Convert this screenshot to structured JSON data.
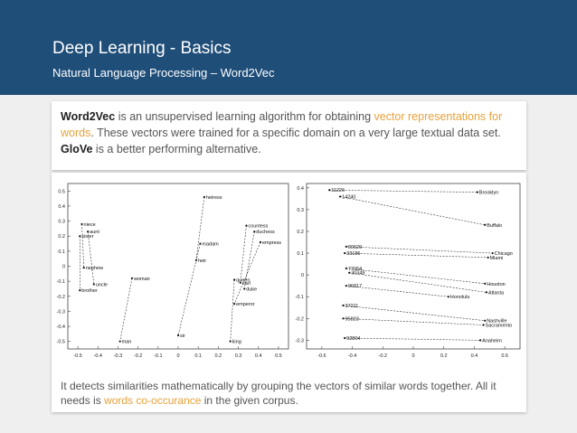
{
  "header": {
    "title": "Deep Learning - Basics",
    "subtitle": "Natural Language Processing – Word2Vec"
  },
  "intro": {
    "term": "Word2Vec",
    "text1": " is an unsupervised learning algorithm for obtaining ",
    "highlight": "vector representations for words",
    "text2": ". These vectors were trained for a specific domain on a very large textual data set. ",
    "term2": "GloVe",
    "text3": " is a better performing alternative."
  },
  "footer": {
    "text1": "It detects similarities mathematically by grouping the vectors of similar words together. All it needs is ",
    "highlight": "words co-occurance",
    "text2": " in the given corpus."
  },
  "colors": {
    "header_bg": "#1f4e79",
    "accent": "#e8a13a"
  },
  "chart_data": [
    {
      "type": "scatter",
      "xlim": [
        -0.55,
        0.55
      ],
      "ylim": [
        -0.55,
        0.55
      ],
      "xticks": [
        "-0.5",
        "-0.4",
        "-0.3",
        "-0.2",
        "-0.1",
        "0",
        "0.1",
        "0.2",
        "0.3",
        "0.4",
        "0.5"
      ],
      "yticks": [
        "0.5",
        "0.4",
        "0.3",
        "0.2",
        "0.1",
        "0",
        "-0.1",
        "-0.2",
        "-0.3",
        "-0.4",
        "-0.5"
      ],
      "points": [
        {
          "label": "niece",
          "x": -0.48,
          "y": 0.28
        },
        {
          "label": "aunt",
          "x": -0.45,
          "y": 0.23
        },
        {
          "label": "sister",
          "x": -0.49,
          "y": 0.2
        },
        {
          "label": "nephew",
          "x": -0.47,
          "y": -0.01
        },
        {
          "label": "uncle",
          "x": -0.42,
          "y": -0.12
        },
        {
          "label": "brother",
          "x": -0.49,
          "y": -0.16
        },
        {
          "label": "woman",
          "x": -0.23,
          "y": -0.08
        },
        {
          "label": "man",
          "x": -0.29,
          "y": -0.5
        },
        {
          "label": "heiress",
          "x": 0.13,
          "y": 0.46
        },
        {
          "label": "madam",
          "x": 0.11,
          "y": 0.15
        },
        {
          "label": "heir",
          "x": 0.09,
          "y": 0.04
        },
        {
          "label": "sir",
          "x": 0.0,
          "y": -0.46
        },
        {
          "label": "countess",
          "x": 0.34,
          "y": 0.27
        },
        {
          "label": "duchess",
          "x": 0.38,
          "y": 0.23
        },
        {
          "label": "empress",
          "x": 0.41,
          "y": 0.16
        },
        {
          "label": "queen",
          "x": 0.28,
          "y": -0.09
        },
        {
          "label": "earl",
          "x": 0.31,
          "y": -0.11
        },
        {
          "label": "duke",
          "x": 0.33,
          "y": -0.15
        },
        {
          "label": "emperor",
          "x": 0.28,
          "y": -0.25
        },
        {
          "label": "king",
          "x": 0.26,
          "y": -0.5
        }
      ],
      "pairs": [
        [
          "niece",
          "nephew"
        ],
        [
          "aunt",
          "uncle"
        ],
        [
          "sister",
          "brother"
        ],
        [
          "woman",
          "man"
        ],
        [
          "heiress",
          "heir"
        ],
        [
          "madam",
          "sir"
        ],
        [
          "countess",
          "earl"
        ],
        [
          "duchess",
          "duke"
        ],
        [
          "empress",
          "emperor"
        ],
        [
          "queen",
          "king"
        ]
      ]
    },
    {
      "type": "scatter",
      "xlim": [
        -0.7,
        0.7
      ],
      "ylim": [
        -0.34,
        0.42
      ],
      "xticks": [
        "-0.6",
        "-0.4",
        "-0.2",
        "0",
        "0.2",
        "0.4",
        "0.6"
      ],
      "yticks": [
        "0.4",
        "0.3",
        "0.2",
        "0.1",
        "0",
        "-0.1",
        "-0.2",
        "-0.3"
      ],
      "points": [
        {
          "label": "11226",
          "x": -0.55,
          "y": 0.39
        },
        {
          "label": "14240",
          "x": -0.48,
          "y": 0.36
        },
        {
          "label": "60629",
          "x": -0.44,
          "y": 0.13
        },
        {
          "label": "33186",
          "x": -0.45,
          "y": 0.1
        },
        {
          "label": "77064",
          "x": -0.44,
          "y": 0.03
        },
        {
          "label": "30349",
          "x": -0.42,
          "y": 0.01
        },
        {
          "label": "96817",
          "x": -0.44,
          "y": -0.05
        },
        {
          "label": "37211",
          "x": -0.46,
          "y": -0.14
        },
        {
          "label": "95823",
          "x": -0.46,
          "y": -0.2
        },
        {
          "label": "92804",
          "x": -0.45,
          "y": -0.29
        },
        {
          "label": "Brooklyn",
          "x": 0.42,
          "y": 0.38
        },
        {
          "label": "Buffalo",
          "x": 0.47,
          "y": 0.23
        },
        {
          "label": "Chicago",
          "x": 0.52,
          "y": 0.1
        },
        {
          "label": "Miami",
          "x": 0.49,
          "y": 0.08
        },
        {
          "label": "Houston",
          "x": 0.47,
          "y": -0.04
        },
        {
          "label": "Atlanta",
          "x": 0.48,
          "y": -0.08
        },
        {
          "label": "Honolulu",
          "x": 0.23,
          "y": -0.1
        },
        {
          "label": "Nashville",
          "x": 0.47,
          "y": -0.21
        },
        {
          "label": "Sacramento",
          "x": 0.46,
          "y": -0.23
        },
        {
          "label": "Anaheim",
          "x": 0.44,
          "y": -0.3
        }
      ],
      "pairs": [
        [
          "11226",
          "Brooklyn"
        ],
        [
          "14240",
          "Buffalo"
        ],
        [
          "60629",
          "Chicago"
        ],
        [
          "33186",
          "Miami"
        ],
        [
          "77064",
          "Houston"
        ],
        [
          "30349",
          "Atlanta"
        ],
        [
          "96817",
          "Honolulu"
        ],
        [
          "37211",
          "Nashville"
        ],
        [
          "95823",
          "Sacramento"
        ],
        [
          "92804",
          "Anaheim"
        ]
      ]
    }
  ]
}
